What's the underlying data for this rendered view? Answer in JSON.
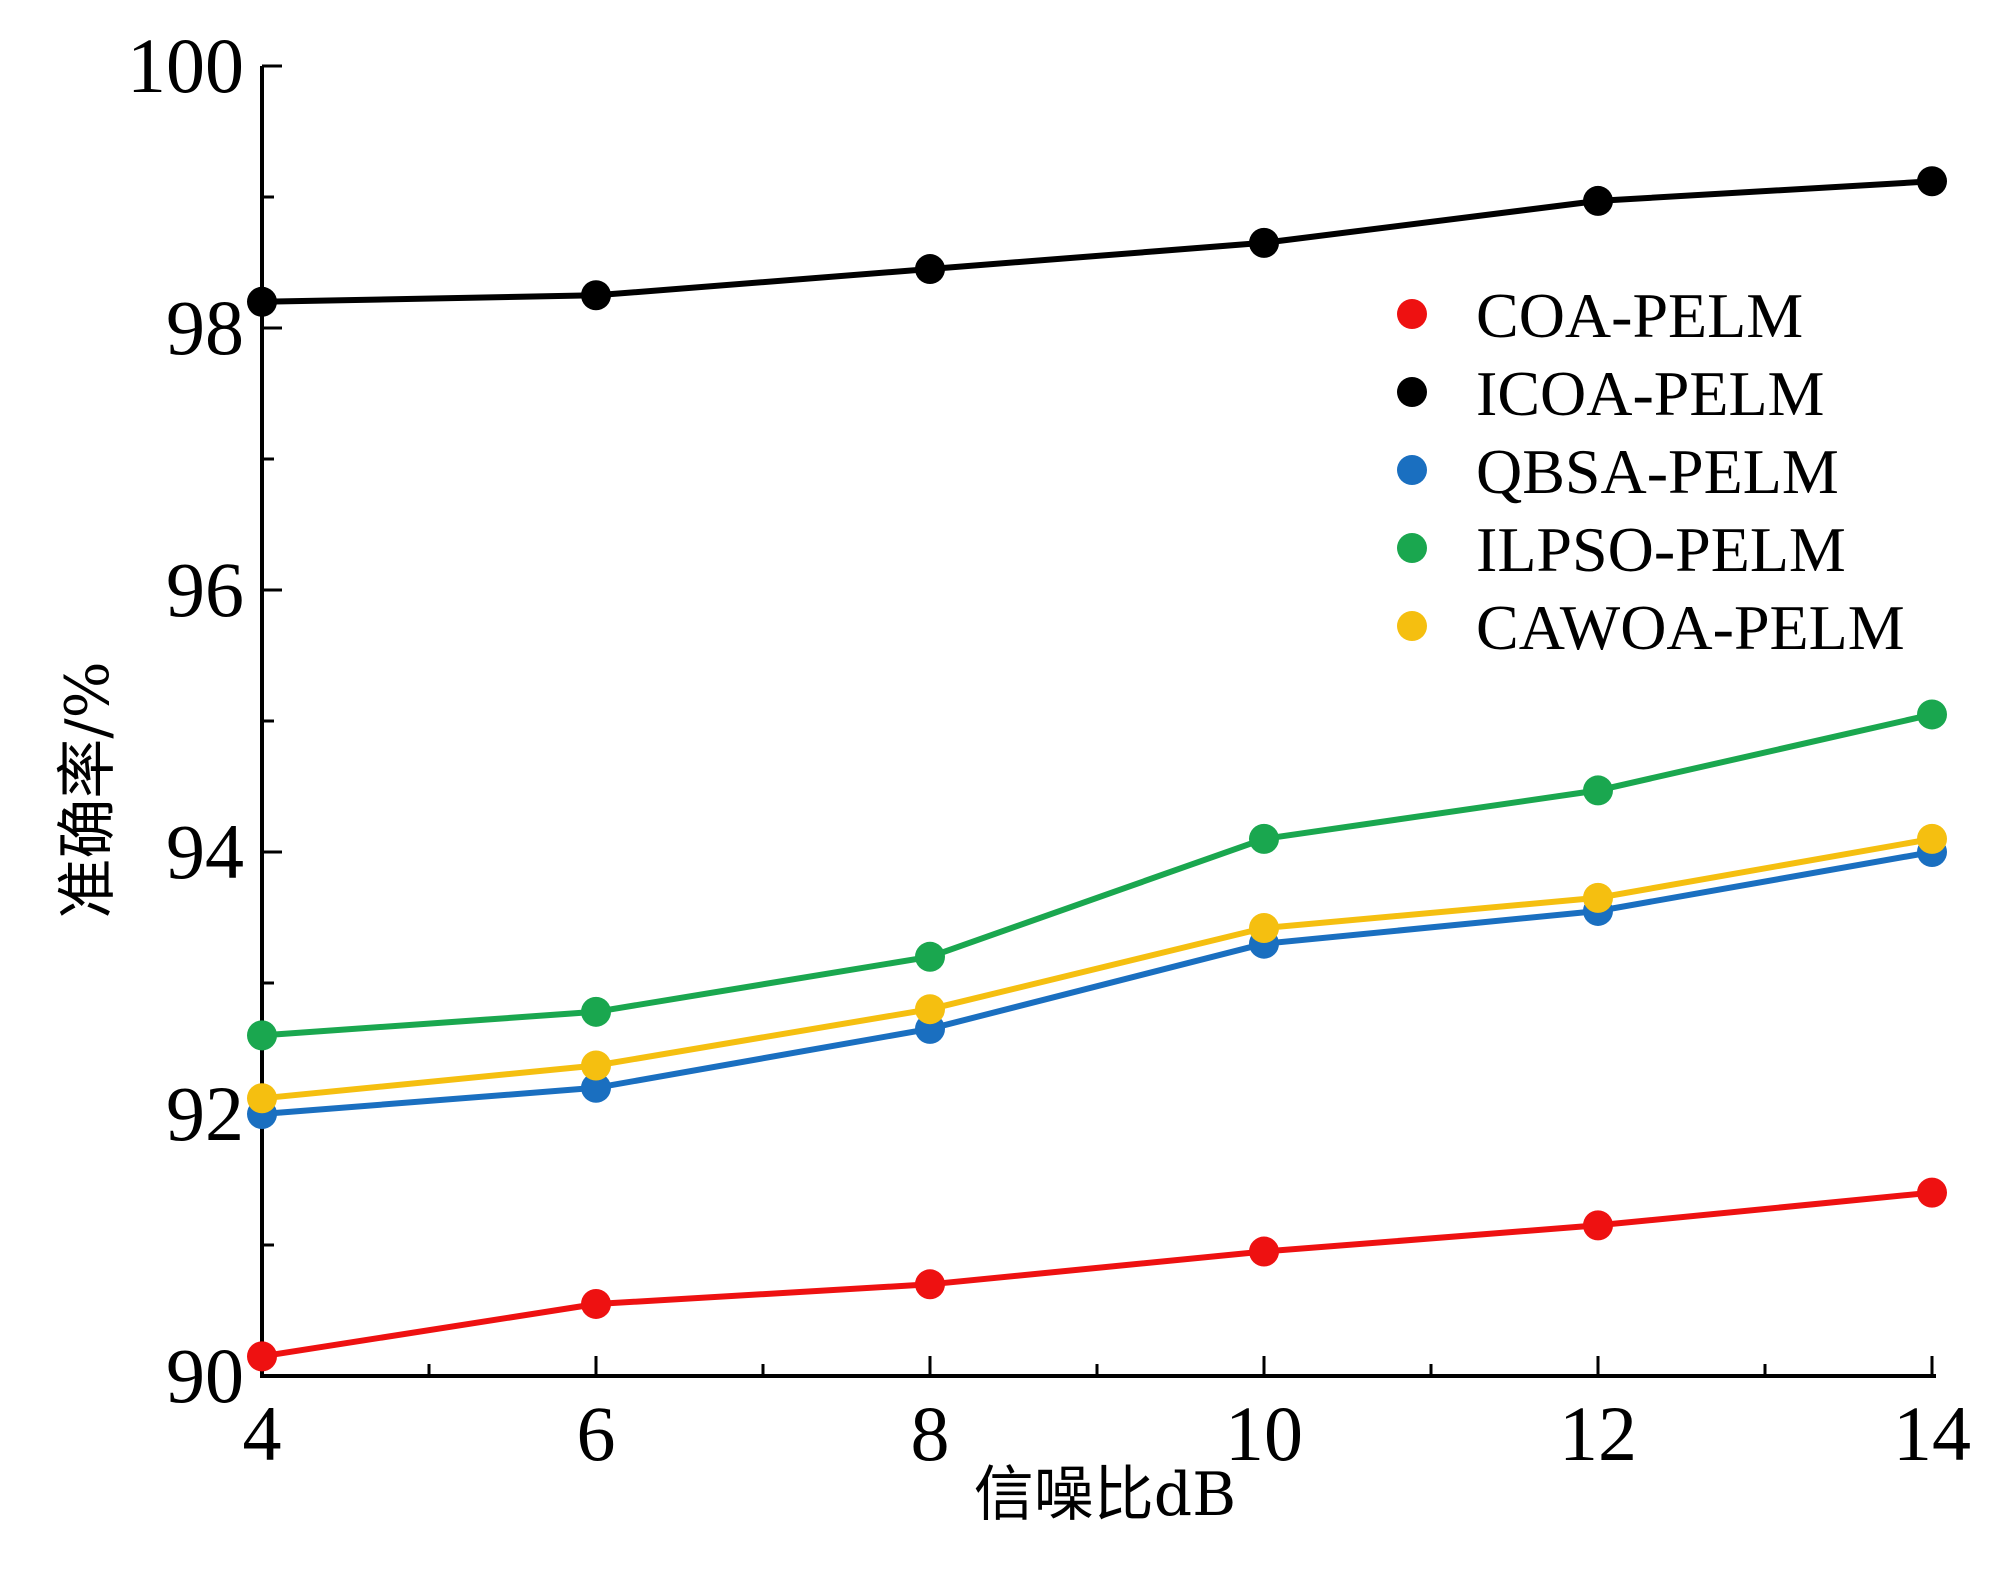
{
  "chart_data": {
    "type": "line",
    "title": "",
    "xlabel": "信噪比dB",
    "ylabel": "准确率/%",
    "x": [
      4,
      6,
      8,
      10,
      12,
      14
    ],
    "xlim": [
      4,
      14
    ],
    "ylim": [
      90,
      100
    ],
    "xticks": [
      "4",
      "6",
      "8",
      "10",
      "12",
      "14"
    ],
    "yticks": [
      "90",
      "92",
      "94",
      "96",
      "98",
      "100"
    ],
    "grid": false,
    "legend_position": "top-right",
    "series": [
      {
        "name": "COA-PELM",
        "color": "#ee1111",
        "values": [
          90.15,
          90.55,
          90.7,
          90.95,
          91.15,
          91.4
        ]
      },
      {
        "name": "ICOA-PELM",
        "color": "#000000",
        "values": [
          98.2,
          98.25,
          98.45,
          98.65,
          98.97,
          99.12
        ]
      },
      {
        "name": "QBSA-PELM",
        "color": "#1a6fc0",
        "values": [
          92.0,
          92.2,
          92.65,
          93.3,
          93.55,
          94.0
        ]
      },
      {
        "name": "ILPSO-PELM",
        "color": "#1aa74f",
        "values": [
          92.6,
          92.78,
          93.2,
          94.1,
          94.47,
          95.05
        ]
      },
      {
        "name": "CAWOA-PELM",
        "color": "#f5bf10",
        "values": [
          92.12,
          92.37,
          92.8,
          93.42,
          93.65,
          94.1
        ]
      }
    ]
  }
}
